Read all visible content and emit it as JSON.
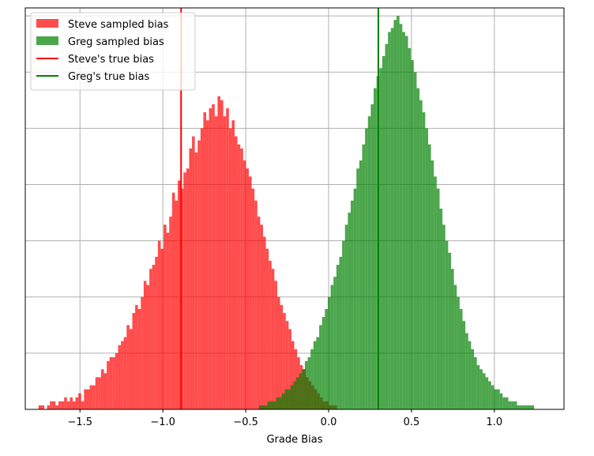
{
  "chart_data": {
    "type": "bar",
    "subtype": "histogram",
    "title": "",
    "xlabel": "Grade Bias",
    "ylabel": "",
    "xlim": [
      -1.83,
      1.42
    ],
    "ylim": [
      0,
      100
    ],
    "grid": true,
    "legend_position": "top-left",
    "x_ticks": [
      {
        "value": -1.5,
        "label": "−1.5"
      },
      {
        "value": -1.0,
        "label": "−1.0"
      },
      {
        "value": -0.5,
        "label": "−0.5"
      },
      {
        "value": 0.0,
        "label": "0.0"
      },
      {
        "value": 0.5,
        "label": "0.5"
      },
      {
        "value": 1.0,
        "label": "1.0"
      }
    ],
    "y_gridlines": [
      0,
      14,
      28,
      42,
      56,
      70,
      84,
      98
    ],
    "series": [
      {
        "name": "Steve sampled bias",
        "color": "#ff0000",
        "opacity": 0.7,
        "bin_range": [
          -1.75,
          0.05
        ],
        "counts": [
          1,
          1,
          0,
          1,
          2,
          2,
          1,
          2,
          2,
          3,
          2,
          3,
          2,
          3,
          4,
          2,
          5,
          5,
          6,
          6,
          8,
          8,
          10,
          9,
          12,
          13,
          13,
          14,
          16,
          17,
          18,
          21,
          20,
          24,
          26,
          25,
          28,
          32,
          31,
          35,
          36,
          38,
          42,
          40,
          46,
          44,
          48,
          54,
          52,
          57,
          55,
          59,
          60,
          65,
          68,
          64,
          67,
          70,
          74,
          72,
          75,
          76,
          73,
          78,
          77,
          73,
          75,
          70,
          72,
          68,
          66,
          65,
          62,
          60,
          58,
          55,
          52,
          48,
          46,
          43,
          40,
          37,
          35,
          32,
          28,
          26,
          24,
          22,
          20,
          17,
          15,
          13,
          11,
          10,
          8,
          7,
          6,
          5,
          4,
          3,
          2,
          2,
          1,
          1,
          1
        ]
      },
      {
        "name": "Greg sampled bias",
        "color": "#008000",
        "opacity": 0.7,
        "bin_range": [
          -0.42,
          1.24
        ],
        "counts": [
          1,
          1,
          1,
          2,
          2,
          2,
          3,
          3,
          4,
          5,
          5,
          6,
          7,
          8,
          9,
          10,
          12,
          13,
          15,
          17,
          18,
          21,
          23,
          25,
          28,
          31,
          33,
          36,
          38,
          42,
          46,
          49,
          52,
          55,
          60,
          62,
          66,
          70,
          73,
          76,
          80,
          83,
          85,
          88,
          91,
          94,
          95,
          97,
          98,
          96,
          94,
          93,
          90,
          87,
          84,
          80,
          77,
          74,
          70,
          66,
          62,
          58,
          55,
          50,
          46,
          42,
          39,
          35,
          31,
          28,
          25,
          22,
          19,
          17,
          15,
          13,
          11,
          10,
          9,
          8,
          7,
          6,
          5,
          5,
          4,
          3,
          3,
          2,
          2,
          2,
          1,
          1,
          1,
          1,
          1,
          1
        ]
      }
    ],
    "vlines": [
      {
        "name": "Steve's true bias",
        "x": -0.89,
        "color": "#ff0000"
      },
      {
        "name": "Greg's true bias",
        "x": 0.3,
        "color": "#008000"
      }
    ]
  }
}
